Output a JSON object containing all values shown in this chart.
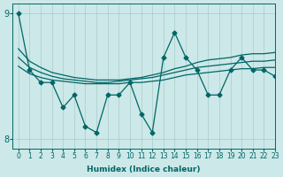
{
  "xlabel": "Humidex (Indice chaleur)",
  "ylabel": "",
  "bg_color": "#cce8e8",
  "line_color": "#006666",
  "grid_color": "#aacccc",
  "xlim": [
    -0.5,
    23
  ],
  "ylim": [
    7.92,
    9.08
  ],
  "yticks": [
    8,
    9
  ],
  "xticks": [
    0,
    1,
    2,
    3,
    4,
    5,
    6,
    7,
    8,
    9,
    10,
    11,
    12,
    13,
    14,
    15,
    16,
    17,
    18,
    19,
    20,
    21,
    22,
    23
  ],
  "main_series": [
    9.0,
    8.55,
    8.45,
    8.45,
    8.25,
    8.35,
    8.1,
    8.05,
    8.35,
    8.35,
    8.45,
    8.2,
    8.05,
    8.65,
    8.85,
    8.65,
    8.55,
    8.35,
    8.35,
    8.55,
    8.65,
    8.55,
    8.55,
    8.5
  ],
  "smooth_lines": [
    [
      8.58,
      8.52,
      8.49,
      8.47,
      8.46,
      8.45,
      8.44,
      8.44,
      8.44,
      8.44,
      8.45,
      8.45,
      8.46,
      8.47,
      8.49,
      8.51,
      8.52,
      8.53,
      8.54,
      8.55,
      8.56,
      8.56,
      8.57,
      8.57
    ],
    [
      8.65,
      8.57,
      8.53,
      8.5,
      8.48,
      8.47,
      8.46,
      8.45,
      8.45,
      8.46,
      8.47,
      8.48,
      8.49,
      8.51,
      8.53,
      8.55,
      8.57,
      8.58,
      8.59,
      8.6,
      8.61,
      8.62,
      8.62,
      8.63
    ],
    [
      8.72,
      8.62,
      8.57,
      8.53,
      8.51,
      8.49,
      8.48,
      8.47,
      8.47,
      8.47,
      8.48,
      8.49,
      8.51,
      8.53,
      8.56,
      8.58,
      8.61,
      8.63,
      8.64,
      8.65,
      8.67,
      8.68,
      8.68,
      8.69
    ]
  ],
  "marker": "D",
  "markersize": 2.5,
  "linewidth": 0.9
}
